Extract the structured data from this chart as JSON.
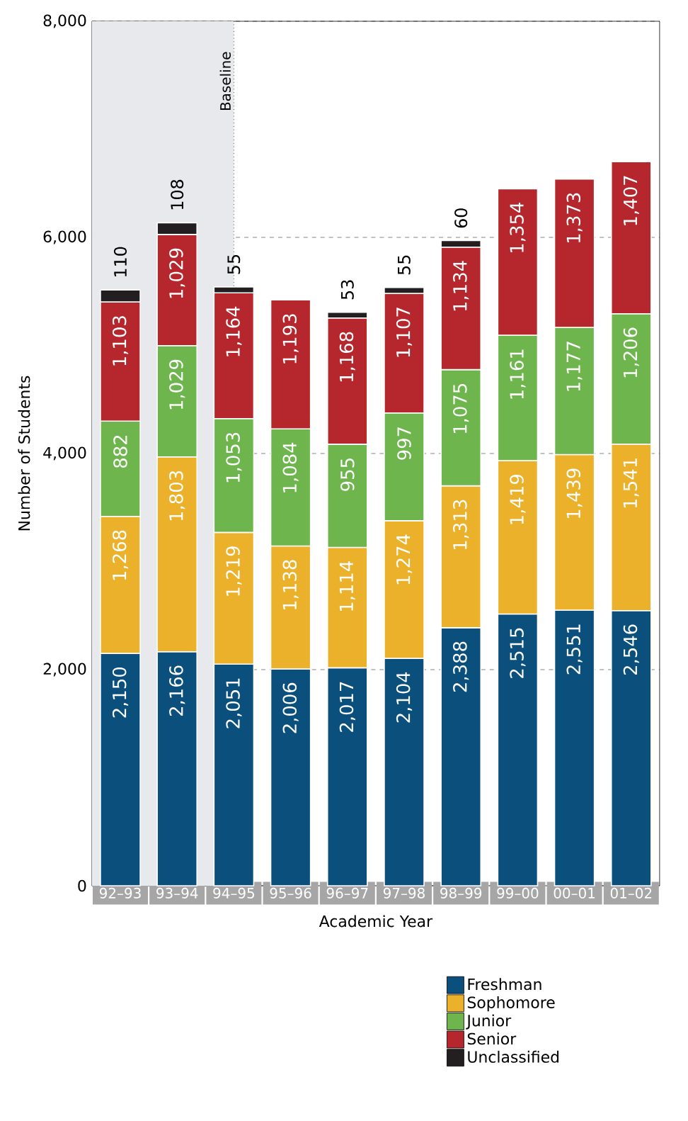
{
  "chart_data": {
    "type": "bar",
    "stacked": true,
    "xlabel": "Academic Year",
    "ylabel": "Number of Students",
    "categories": [
      "92–93",
      "93–94",
      "94–95",
      "95–96",
      "96–97",
      "97–98",
      "98–99",
      "99–00",
      "00–01",
      "01–02"
    ],
    "series": [
      {
        "name": "Freshman",
        "color": "#0b4f7c",
        "values": [
          2150,
          2166,
          2051,
          2006,
          2017,
          2104,
          2388,
          2515,
          2551,
          2546
        ],
        "value_labels": [
          "2,150",
          "2,166",
          "2,051",
          "2,006",
          "2,017",
          "2,104",
          "2,388",
          "2,515",
          "2,551",
          "2,546"
        ]
      },
      {
        "name": "Sophomore",
        "color": "#ebb12a",
        "values": [
          1268,
          1803,
          1219,
          1138,
          1114,
          1274,
          1313,
          1419,
          1439,
          1541
        ],
        "value_labels": [
          "1,268",
          "1,803",
          "1,219",
          "1,138",
          "1,114",
          "1,274",
          "1,313",
          "1,419",
          "1,439",
          "1,541"
        ]
      },
      {
        "name": "Junior",
        "color": "#6db54c",
        "values": [
          882,
          1029,
          1053,
          1084,
          955,
          997,
          1075,
          1161,
          1177,
          1206
        ],
        "value_labels": [
          "882",
          "1,029",
          "1,053",
          "1,084",
          "955",
          "997",
          "1,075",
          "1,161",
          "1,177",
          "1,206"
        ]
      },
      {
        "name": "Senior",
        "color": "#b5272d",
        "values": [
          1103,
          1029,
          1164,
          1193,
          1168,
          1107,
          1134,
          1354,
          1373,
          1407
        ],
        "value_labels": [
          "1,103",
          "1,029",
          "1,164",
          "1,193",
          "1,168",
          "1,107",
          "1,134",
          "1,354",
          "1,373",
          "1,407"
        ]
      },
      {
        "name": "Unclassified",
        "color": "#231f20",
        "values": [
          110,
          108,
          55,
          null,
          53,
          55,
          60,
          null,
          null,
          null
        ],
        "value_labels": [
          "110",
          "108",
          "55",
          null,
          "53",
          "55",
          "60",
          null,
          null,
          null
        ]
      }
    ],
    "ylim": [
      0,
      8000
    ],
    "yticks": [
      0,
      {
        "value": 2000,
        "label": "2,000"
      },
      {
        "value": 4000,
        "label": "4,000"
      },
      {
        "value": 6000,
        "label": "6,000"
      },
      {
        "value": 8000,
        "label": "8,000"
      }
    ],
    "grid": "y",
    "legend": "bottom right",
    "ref_lines": [
      {
        "axis": "x",
        "value": "94–95",
        "label": "Baseline",
        "line_style": "dotted"
      }
    ],
    "bands": [
      {
        "axis": "x",
        "from": "92–93",
        "to": "94–95",
        "color": "#e8e9ec"
      }
    ]
  }
}
